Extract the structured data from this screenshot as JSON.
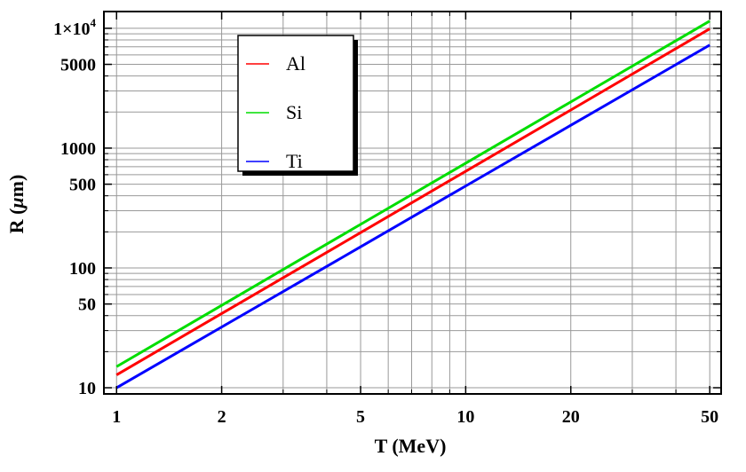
{
  "figure": {
    "background": "#ffffff",
    "frame_color": "#000000",
    "grid_color": "#999999",
    "tick_color": "#000000",
    "text_color": "#000000"
  },
  "chart_data": {
    "type": "line",
    "title": "",
    "xlabel": "T (MeV)",
    "ylabel": "R (μm)",
    "x_scale": "log",
    "y_scale": "log",
    "xlim": [
      0.92,
      53.9
    ],
    "ylim": [
      8.88,
      13800
    ],
    "grid": true,
    "legend_position": "upper-left-inside",
    "x": [
      1,
      2,
      5,
      10,
      20,
      50
    ],
    "series": [
      {
        "name": "Al",
        "color": "#ff0000",
        "values": [
          12.8,
          41.6,
          197,
          641,
          2080,
          9900
        ]
      },
      {
        "name": "Si",
        "color": "#00dd00",
        "values": [
          15.0,
          48.7,
          231,
          748,
          2430,
          11500
        ]
      },
      {
        "name": "Ti",
        "color": "#0000ff",
        "values": [
          10.0,
          32.1,
          150,
          483,
          1550,
          7250
        ]
      }
    ],
    "x_ticks_major": [
      {
        "value": 1,
        "label": "1"
      },
      {
        "value": 2,
        "label": "2"
      },
      {
        "value": 5,
        "label": "5"
      },
      {
        "value": 10,
        "label": "10"
      },
      {
        "value": 20,
        "label": "20"
      },
      {
        "value": 50,
        "label": "50"
      }
    ],
    "x_ticks_minor": [
      3,
      4,
      6,
      7,
      8,
      9,
      30,
      40
    ],
    "y_ticks_major": [
      {
        "value": 10,
        "label": "10"
      },
      {
        "value": 50,
        "label": "50"
      },
      {
        "value": 100,
        "label": "100"
      },
      {
        "value": 500,
        "label": "500"
      },
      {
        "value": 1000,
        "label": "1000"
      },
      {
        "value": 5000,
        "label": "5000"
      },
      {
        "value": 10000,
        "label": "1×10^4"
      }
    ],
    "y_ticks_minor": [
      20,
      30,
      40,
      60,
      70,
      80,
      90,
      200,
      300,
      400,
      600,
      700,
      800,
      900,
      2000,
      3000,
      4000,
      6000,
      7000,
      8000,
      9000
    ]
  },
  "legend": {
    "items": [
      {
        "label": "Al",
        "color": "#ff0000"
      },
      {
        "label": "Si",
        "color": "#00dd00"
      },
      {
        "label": "Ti",
        "color": "#0000ff"
      }
    ]
  }
}
